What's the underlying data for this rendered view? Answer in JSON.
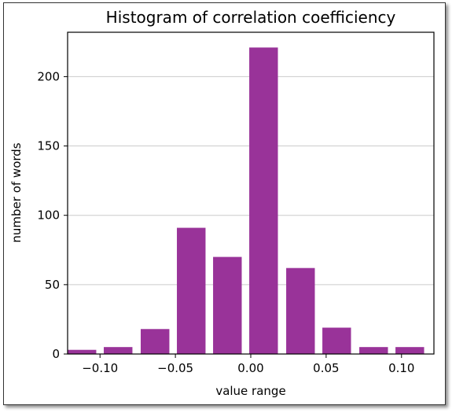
{
  "chart_data": {
    "type": "bar",
    "title": "Histogram of correlation coefficiency",
    "xlabel": "value range",
    "ylabel": "number of words",
    "x": [
      -0.112,
      -0.088,
      -0.0635,
      -0.0395,
      -0.0155,
      0.0085,
      0.033,
      0.057,
      0.0815,
      0.1055
    ],
    "values": [
      3,
      5,
      18,
      91,
      70,
      221,
      62,
      19,
      5,
      5
    ],
    "bar_width": 0.019,
    "xlim": [
      -0.1215,
      0.1215
    ],
    "ylim": [
      0,
      232
    ],
    "xticks": [
      -0.1,
      -0.05,
      0.0,
      0.05,
      0.1
    ],
    "xtick_labels": [
      "−0.10",
      "−0.05",
      "0.00",
      "0.05",
      "0.10"
    ],
    "yticks": [
      0,
      50,
      100,
      150,
      200
    ],
    "ytick_labels": [
      "0",
      "50",
      "100",
      "150",
      "200"
    ],
    "grid": "horizontal",
    "bar_color": "#993399",
    "grid_color": "#cccccc"
  }
}
